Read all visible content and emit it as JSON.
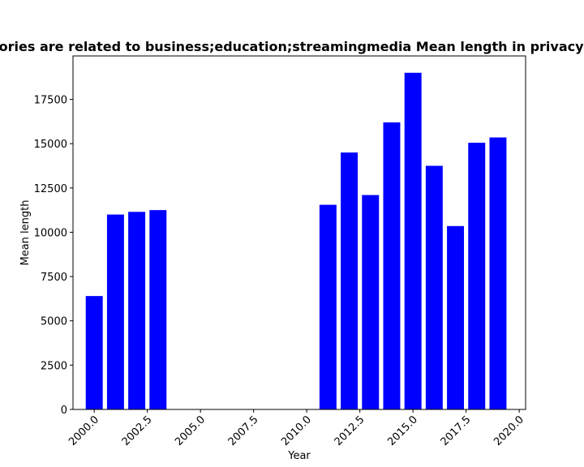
{
  "chart_data": {
    "type": "bar",
    "title": "Categories are related to business;education;streamingmedia Mean length in privacy policies",
    "xlabel": "Year",
    "ylabel": "Mean length",
    "x": [
      2000,
      2001,
      2002,
      2003,
      2011,
      2012,
      2013,
      2014,
      2015,
      2016,
      2017,
      2018,
      2019
    ],
    "values": [
      6400,
      11000,
      11150,
      11250,
      11550,
      14500,
      12100,
      16200,
      19000,
      13750,
      10350,
      15050,
      15350
    ],
    "xlim": [
      1999,
      2020.3
    ],
    "ylim": [
      0,
      19950
    ],
    "xticks": [
      2000,
      2002.5,
      2005,
      2007.5,
      2010,
      2012.5,
      2015,
      2017.5,
      2020
    ],
    "xtick_labels": [
      "2000.0",
      "2002.5",
      "2005.0",
      "2007.5",
      "2010.0",
      "2012.5",
      "2015.0",
      "2017.5",
      "2020.0"
    ],
    "yticks": [
      0,
      2500,
      5000,
      7500,
      10000,
      12500,
      15000,
      17500
    ],
    "ytick_labels": [
      "0",
      "2500",
      "5000",
      "7500",
      "10000",
      "12500",
      "15000",
      "17500"
    ],
    "bar_color": "#0000ff",
    "grid": false,
    "legend": "none"
  }
}
